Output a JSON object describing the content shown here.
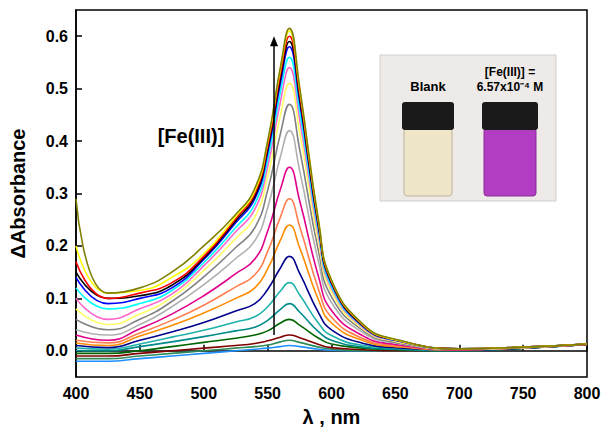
{
  "chart_data": {
    "type": "line",
    "x_label": "λ , nm",
    "y_label": "ΔAbsorbance",
    "xlim": [
      400,
      800
    ],
    "xticks": [
      400,
      450,
      500,
      550,
      600,
      650,
      700,
      750,
      800
    ],
    "ylim": [
      -0.05,
      0.65
    ],
    "yticks": [
      {
        "value": 0,
        "label": "0.0"
      },
      0.1,
      0.2,
      0.3,
      0.4,
      0.5,
      0.6
    ],
    "grid": false,
    "x": [
      400,
      425,
      450,
      475,
      500,
      525,
      540,
      550,
      560,
      567,
      575,
      590,
      600,
      625,
      650,
      700,
      750,
      800
    ],
    "series": [
      {
        "color": "#1e90ff",
        "values": [
          -0.02,
          -0.02,
          -0.015,
          -0.01,
          -0.005,
          0,
          0.003,
          0.005,
          0.008,
          0.01,
          0.008,
          0.003,
          0.001,
          0,
          0,
          0,
          0.005,
          0.012
        ]
      },
      {
        "color": "#2e8b57",
        "values": [
          -0.015,
          -0.015,
          -0.01,
          -0.005,
          0,
          0.005,
          0.008,
          0.011,
          0.017,
          0.02,
          0.016,
          0.007,
          0.003,
          0,
          0,
          0,
          0.005,
          0.012
        ]
      },
      {
        "color": "#800000",
        "values": [
          -0.01,
          -0.01,
          -0.005,
          0,
          0.005,
          0.01,
          0.014,
          0.019,
          0.026,
          0.03,
          0.025,
          0.012,
          0.006,
          0.002,
          0,
          0,
          0.005,
          0.012
        ]
      },
      {
        "color": "#006400",
        "values": [
          -0.005,
          -0.005,
          0,
          0.008,
          0.016,
          0.024,
          0.03,
          0.038,
          0.053,
          0.06,
          0.049,
          0.024,
          0.013,
          0.005,
          0.002,
          0,
          0.005,
          0.012
        ]
      },
      {
        "color": "#008b8b",
        "values": [
          0,
          0,
          0.008,
          0.017,
          0.027,
          0.038,
          0.045,
          0.058,
          0.079,
          0.09,
          0.074,
          0.036,
          0.02,
          0.007,
          0.003,
          0,
          0.005,
          0.012
        ]
      },
      {
        "color": "#20b2aa",
        "values": [
          0.005,
          0.003,
          0.013,
          0.026,
          0.039,
          0.055,
          0.065,
          0.084,
          0.114,
          0.13,
          0.107,
          0.052,
          0.029,
          0.01,
          0.005,
          0.001,
          0.005,
          0.012
        ]
      },
      {
        "color": "#00008b",
        "values": [
          0.01,
          0.006,
          0.02,
          0.036,
          0.054,
          0.076,
          0.09,
          0.117,
          0.158,
          0.18,
          0.148,
          0.072,
          0.04,
          0.014,
          0.006,
          0.001,
          0.005,
          0.012
        ]
      },
      {
        "color": "#ff8c00",
        "values": [
          0.015,
          0.01,
          0.028,
          0.048,
          0.072,
          0.1,
          0.12,
          0.156,
          0.211,
          0.24,
          0.197,
          0.096,
          0.053,
          0.019,
          0.008,
          0.002,
          0.006,
          0.012
        ]
      },
      {
        "color": "#ff7f50",
        "values": [
          0.02,
          0.015,
          0.034,
          0.058,
          0.087,
          0.122,
          0.145,
          0.189,
          0.255,
          0.29,
          0.238,
          0.116,
          0.064,
          0.023,
          0.01,
          0.002,
          0.006,
          0.012
        ]
      },
      {
        "color": "#e0008b",
        "values": [
          0.03,
          0.02,
          0.042,
          0.07,
          0.105,
          0.147,
          0.175,
          0.228,
          0.308,
          0.35,
          0.287,
          0.14,
          0.077,
          0.028,
          0.012,
          0.002,
          0.006,
          0.012
        ]
      },
      {
        "color": "#b0b0b0",
        "values": [
          0.04,
          0.03,
          0.05,
          0.084,
          0.126,
          0.176,
          0.21,
          0.273,
          0.37,
          0.42,
          0.344,
          0.168,
          0.092,
          0.034,
          0.015,
          0.003,
          0.006,
          0.013
        ]
      },
      {
        "color": "#808080",
        "values": [
          0.06,
          0.04,
          0.06,
          0.094,
          0.141,
          0.197,
          0.235,
          0.306,
          0.414,
          0.47,
          0.385,
          0.188,
          0.103,
          0.038,
          0.016,
          0.003,
          0.006,
          0.013
        ]
      },
      {
        "color": "#ffff66",
        "values": [
          0.08,
          0.05,
          0.07,
          0.102,
          0.153,
          0.214,
          0.255,
          0.332,
          0.449,
          0.51,
          0.418,
          0.204,
          0.112,
          0.041,
          0.018,
          0.003,
          0.006,
          0.013
        ]
      },
      {
        "color": "#ff66cc",
        "values": [
          0.1,
          0.06,
          0.08,
          0.108,
          0.162,
          0.227,
          0.27,
          0.351,
          0.475,
          0.54,
          0.443,
          0.216,
          0.119,
          0.043,
          0.019,
          0.004,
          0.007,
          0.013
        ]
      },
      {
        "color": "#00ffff",
        "values": [
          0.12,
          0.08,
          0.09,
          0.115,
          0.168,
          0.235,
          0.28,
          0.364,
          0.493,
          0.56,
          0.459,
          0.224,
          0.123,
          0.045,
          0.02,
          0.004,
          0.007,
          0.013
        ]
      },
      {
        "color": "#0000ff",
        "values": [
          0.14,
          0.09,
          0.1,
          0.12,
          0.174,
          0.244,
          0.29,
          0.377,
          0.51,
          0.58,
          0.476,
          0.232,
          0.128,
          0.046,
          0.02,
          0.004,
          0.007,
          0.013
        ]
      },
      {
        "color": "#000000",
        "values": [
          0.15,
          0.1,
          0.105,
          0.125,
          0.177,
          0.248,
          0.295,
          0.384,
          0.519,
          0.59,
          0.484,
          0.236,
          0.13,
          0.047,
          0.021,
          0.004,
          0.007,
          0.013
        ]
      },
      {
        "color": "#ff0000",
        "values": [
          0.17,
          0.1,
          0.11,
          0.13,
          0.18,
          0.252,
          0.3,
          0.39,
          0.528,
          0.6,
          0.492,
          0.24,
          0.132,
          0.048,
          0.021,
          0.004,
          0.007,
          0.013
        ]
      },
      {
        "color": "#ffff00",
        "values": [
          0.2,
          0.11,
          0.115,
          0.14,
          0.185,
          0.256,
          0.305,
          0.397,
          0.537,
          0.61,
          0.5,
          0.244,
          0.134,
          0.049,
          0.021,
          0.004,
          0.007,
          0.013
        ]
      },
      {
        "color": "#808000",
        "values": [
          0.29,
          0.11,
          0.12,
          0.15,
          0.2,
          0.26,
          0.31,
          0.4,
          0.541,
          0.615,
          0.504,
          0.246,
          0.135,
          0.05,
          0.022,
          0.004,
          0.007,
          0.013
        ]
      }
    ],
    "annotations": [
      {
        "text": "[Fe(III)]",
        "x": 490,
        "y": 0.41,
        "arrow_x": 555,
        "arrow_from": 0.03,
        "arrow_to": 0.6
      }
    ],
    "inset_labels": [
      "Blank",
      "[Fe(III)] = 6.57x10⁻⁴ M"
    ]
  }
}
